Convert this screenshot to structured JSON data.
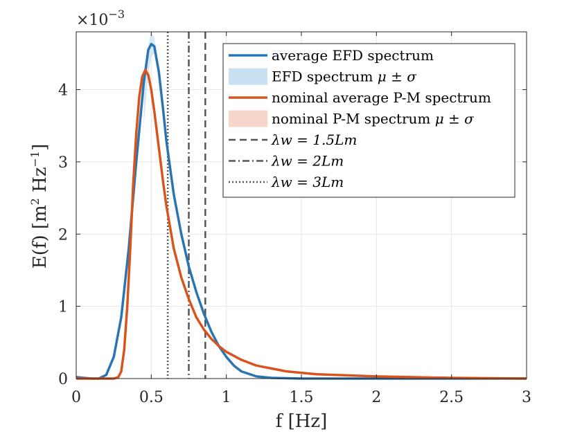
{
  "chart_data": {
    "type": "line",
    "title": "",
    "xlabel": "f [Hz]",
    "ylabel": "E(f) [m^2 Hz^-1]",
    "ylabel_parts": {
      "main": "E(f) [m",
      "sup1": "2",
      "mid": " Hz",
      "sup2": "−1",
      "end": "]"
    },
    "exponent_label": {
      "base": "×10",
      "power": "−3"
    },
    "xlim": [
      0,
      3
    ],
    "ylim": [
      0,
      4.8
    ],
    "y_scale_factor": 0.001,
    "xticks": [
      0,
      0.5,
      1,
      1.5,
      2,
      2.5,
      3
    ],
    "xtick_labels": [
      "0",
      "0.5",
      "1",
      "1.5",
      "2",
      "2.5",
      "3"
    ],
    "yticks": [
      0,
      1,
      2,
      3,
      4
    ],
    "ytick_labels": [
      "0",
      "1",
      "2",
      "3",
      "4"
    ],
    "grid": true,
    "legend_position": "top-right",
    "legend": [
      {
        "text": "average EFD spectrum",
        "math": "",
        "style": "line",
        "color": "#2A74B2"
      },
      {
        "text": "EFD spectrum ",
        "math": "μ ± σ",
        "style": "band",
        "color": "#C9E2F3"
      },
      {
        "text": "nominal average P-M spectrum",
        "math": "",
        "style": "line",
        "color": "#D9541C"
      },
      {
        "text": "nominal P-M spectrum ",
        "math": "μ ± σ",
        "style": "band",
        "color": "#F6D6CB"
      },
      {
        "text": "",
        "math": "λw = 1.5Lm",
        "style": "dash",
        "color": "#555555"
      },
      {
        "text": "",
        "math": "λw = 2Lm",
        "style": "dashdot",
        "color": "#555555"
      },
      {
        "text": "",
        "math": "λw = 3Lm",
        "style": "dot",
        "color": "#555555"
      }
    ],
    "vlines": [
      {
        "name": "λw = 1.5Lm",
        "x": 0.86,
        "style": "dash"
      },
      {
        "name": "λw = 2Lm",
        "x": 0.75,
        "style": "dashdot"
      },
      {
        "name": "λw = 3Lm",
        "x": 0.61,
        "style": "dot"
      }
    ],
    "series": [
      {
        "name": "EFD spectrum μ ± σ (upper)",
        "x": [
          0.45,
          0.48,
          0.5,
          0.52,
          0.55,
          0.58
        ],
        "y": [
          4.0,
          4.6,
          4.8,
          4.72,
          4.3,
          3.7
        ]
      },
      {
        "name": "EFD spectrum μ ± σ (lower)",
        "x": [
          0.45,
          0.48,
          0.5,
          0.52,
          0.55,
          0.58
        ],
        "y": [
          3.5,
          4.2,
          4.45,
          4.5,
          4.15,
          3.55
        ]
      },
      {
        "name": "nominal P-M spectrum μ ± σ (upper)",
        "x": [
          0.44,
          0.46,
          0.48,
          0.5
        ],
        "y": [
          4.1,
          4.3,
          4.32,
          4.1
        ]
      },
      {
        "name": "nominal P-M spectrum μ ± σ (lower)",
        "x": [
          0.44,
          0.46,
          0.48,
          0.5
        ],
        "y": [
          4.0,
          4.2,
          4.22,
          4.0
        ]
      },
      {
        "name": "average EFD spectrum",
        "x": [
          0,
          0.05,
          0.1,
          0.15,
          0.2,
          0.25,
          0.3,
          0.35,
          0.4,
          0.45,
          0.48,
          0.5,
          0.52,
          0.55,
          0.58,
          0.6,
          0.65,
          0.7,
          0.75,
          0.8,
          0.85,
          0.9,
          0.95,
          1.0,
          1.05,
          1.1,
          1.2,
          1.3,
          1.5,
          2.0,
          2.5,
          3.0
        ],
        "y": [
          0.02,
          0.01,
          0.0,
          0.0,
          0.05,
          0.3,
          0.85,
          1.8,
          3.0,
          4.1,
          4.55,
          4.63,
          4.6,
          4.25,
          3.7,
          3.3,
          2.55,
          2.0,
          1.55,
          1.2,
          0.9,
          0.65,
          0.45,
          0.3,
          0.18,
          0.1,
          0.03,
          0.01,
          0.0,
          0.0,
          0.0,
          0.0
        ]
      },
      {
        "name": "nominal average P-M spectrum",
        "x": [
          0,
          0.1,
          0.2,
          0.25,
          0.28,
          0.3,
          0.32,
          0.34,
          0.36,
          0.38,
          0.4,
          0.42,
          0.44,
          0.46,
          0.48,
          0.5,
          0.52,
          0.55,
          0.58,
          0.6,
          0.65,
          0.7,
          0.75,
          0.8,
          0.85,
          0.9,
          0.95,
          1.0,
          1.1,
          1.2,
          1.4,
          1.6,
          2.0,
          2.5,
          3.0
        ],
        "y": [
          0.0,
          0.0,
          0.0,
          0.0,
          0.02,
          0.1,
          0.4,
          1.0,
          1.8,
          2.7,
          3.4,
          3.9,
          4.18,
          4.27,
          4.2,
          4.0,
          3.7,
          3.2,
          2.7,
          2.4,
          1.8,
          1.4,
          1.1,
          0.85,
          0.68,
          0.55,
          0.45,
          0.37,
          0.26,
          0.18,
          0.1,
          0.06,
          0.03,
          0.01,
          0.0
        ]
      }
    ]
  }
}
